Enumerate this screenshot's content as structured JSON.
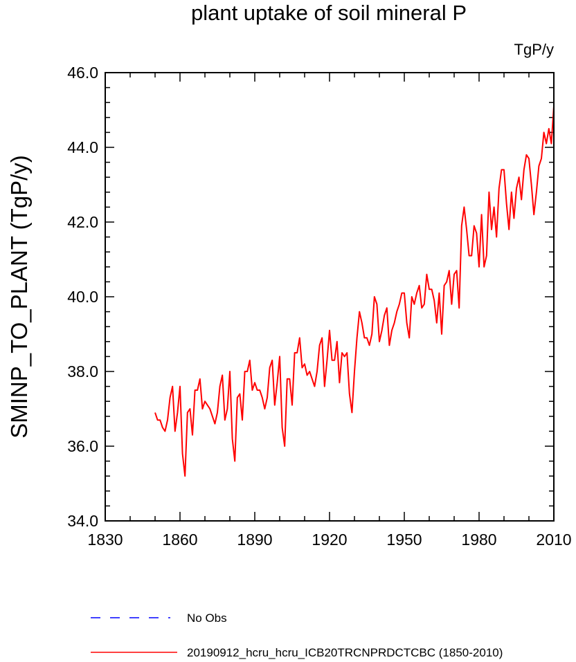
{
  "chart_data": {
    "type": "line",
    "title": "plant uptake of soil mineral P",
    "units": "TgP/y",
    "ylabel": "SMINP_TO_PLANT  (TgP/y)",
    "xlabel": "",
    "xlim": [
      1830,
      2010
    ],
    "ylim": [
      34.0,
      46.0
    ],
    "x_ticks": [
      1830,
      1860,
      1890,
      1920,
      1950,
      1980,
      2010
    ],
    "x_tick_labels": [
      "1830",
      "1860",
      "1890",
      "1920",
      "1950",
      "1980",
      "2010"
    ],
    "y_ticks": [
      34,
      36,
      38,
      40,
      42,
      44,
      46
    ],
    "y_tick_labels": [
      "34.0",
      "36.0",
      "38.0",
      "40.0",
      "42.0",
      "44.0",
      "46.0"
    ],
    "legend": [
      {
        "label": "No Obs",
        "color": "#0000ff",
        "style": "dashed"
      },
      {
        "label": "20190912_hcru_hcru_ICB20TRCNPRDCTCBC (1850-2010)",
        "color": "#ff0000",
        "style": "solid"
      }
    ],
    "series": [
      {
        "name": "20190912_hcru_hcru_ICB20TRCNPRDCTCBC (1850-2010)",
        "color": "#ff0000",
        "x_start": 1850,
        "values": [
          36.9,
          36.7,
          36.7,
          36.5,
          36.4,
          36.7,
          37.3,
          37.6,
          36.4,
          36.9,
          37.6,
          35.8,
          35.2,
          36.9,
          37.0,
          36.3,
          37.5,
          37.5,
          37.8,
          37.0,
          37.2,
          37.1,
          37.0,
          36.8,
          36.6,
          36.9,
          37.6,
          37.9,
          36.7,
          37.0,
          38.0,
          36.2,
          35.6,
          37.3,
          37.4,
          36.7,
          38.0,
          38.0,
          38.3,
          37.5,
          37.7,
          37.5,
          37.5,
          37.3,
          37.0,
          37.3,
          38.1,
          38.3,
          37.1,
          37.7,
          38.4,
          36.5,
          36.0,
          37.8,
          37.8,
          37.1,
          38.5,
          38.5,
          38.9,
          38.1,
          38.2,
          37.9,
          38.0,
          37.8,
          37.6,
          38.0,
          38.7,
          38.9,
          37.6,
          38.3,
          39.1,
          38.3,
          38.3,
          38.8,
          37.7,
          38.5,
          38.4,
          38.5,
          37.4,
          36.9,
          38.0,
          38.9,
          39.6,
          39.3,
          38.9,
          38.9,
          38.7,
          39.0,
          40.0,
          39.8,
          38.8,
          39.1,
          39.5,
          39.7,
          38.7,
          39.1,
          39.3,
          39.6,
          39.8,
          40.1,
          40.1,
          39.3,
          38.9,
          40.0,
          39.8,
          40.1,
          40.3,
          39.7,
          39.8,
          40.6,
          40.2,
          40.2,
          39.9,
          39.3,
          40.1,
          39.0,
          40.3,
          40.4,
          40.7,
          39.8,
          40.6,
          40.7,
          39.7,
          41.9,
          42.4,
          41.8,
          41.1,
          41.1,
          41.9,
          41.7,
          40.8,
          42.2,
          40.8,
          41.1,
          42.8,
          41.8,
          42.4,
          41.6,
          42.9,
          43.4,
          43.4,
          42.5,
          41.8,
          42.8,
          42.1,
          42.9,
          43.2,
          42.6,
          43.4,
          43.8,
          43.7,
          43.0,
          42.2,
          42.8,
          43.5,
          43.7,
          44.4,
          44.1,
          44.5,
          44.1,
          45.1
        ]
      }
    ]
  }
}
